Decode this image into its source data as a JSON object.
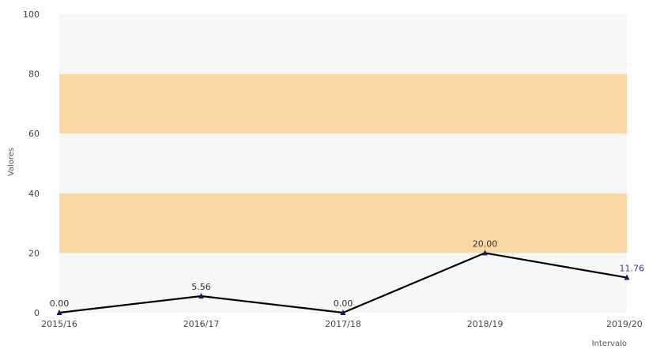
{
  "chart_data": {
    "type": "line",
    "categories": [
      "2015/16",
      "2016/17",
      "2017/18",
      "2018/19",
      "2019/20"
    ],
    "series": [
      {
        "values": [
          0.0,
          5.56,
          0.0,
          20.0,
          11.76
        ],
        "data_labels": [
          "0.00",
          "5.56",
          "0.00",
          "20.00",
          "11.76"
        ],
        "color": "#000000"
      }
    ],
    "ylim": [
      0,
      100
    ],
    "yticks": [
      "0",
      "20",
      "40",
      "60",
      "80",
      "100"
    ],
    "xlabel": "Intervalo",
    "ylabel": "Valores",
    "bands": [
      {
        "from": 0,
        "to": 20,
        "color": "#f7f7f7"
      },
      {
        "from": 20,
        "to": 40,
        "color": "#fbd7a4"
      },
      {
        "from": 40,
        "to": 60,
        "color": "#f7f7f7"
      },
      {
        "from": 60,
        "to": 80,
        "color": "#fbd7a4"
      },
      {
        "from": 80,
        "to": 100,
        "color": "#f7f7f7"
      }
    ],
    "marker_color": "#1a1a5a",
    "label_colors": [
      "#333333",
      "#333333",
      "#333333",
      "#333333",
      "#3a3aa0"
    ],
    "legend": "none",
    "grid": false
  }
}
